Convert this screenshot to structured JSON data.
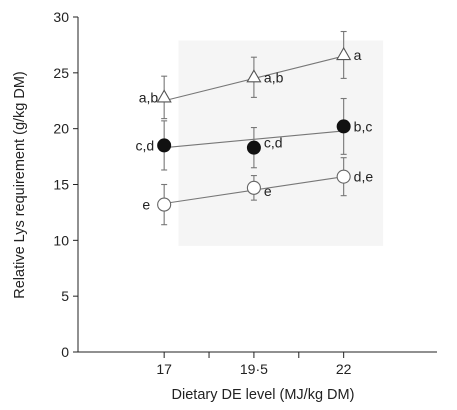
{
  "chart_data": {
    "type": "scatter",
    "xlabel": "Dietary DE level (MJ/kg DM)",
    "ylabel": "Relative Lys requirement (g/kg DM)",
    "x": [
      17,
      19.5,
      22
    ],
    "x_tick_labels": [
      "17",
      "19·5",
      "22"
    ],
    "xlim": [
      14.6,
      24.6
    ],
    "y_ticks": [
      0,
      5,
      10,
      15,
      20,
      25,
      30
    ],
    "ylim": [
      0,
      30
    ],
    "grid": false,
    "legend": "none",
    "shaded_region": {
      "x": [
        17.4,
        23.1
      ],
      "y": [
        9.5,
        27.9
      ],
      "color": "#f5f5f5"
    },
    "series": [
      {
        "marker": "open-triangle",
        "color": "#666666",
        "values": [
          22.8,
          24.6,
          26.6
        ],
        "error": [
          1.9,
          1.8,
          2.1
        ],
        "fit_line": [
          22.5,
          26.5
        ],
        "point_labels": [
          "a,b",
          "a,b",
          "a"
        ]
      },
      {
        "marker": "filled-circle",
        "color": "#111111",
        "values": [
          18.5,
          18.3,
          20.2
        ],
        "error": [
          2.2,
          1.8,
          2.5
        ],
        "fit_line": [
          18.3,
          19.8
        ],
        "point_labels": [
          "c,d",
          "c,d",
          "b,c"
        ]
      },
      {
        "marker": "open-circle",
        "color": "#666666",
        "values": [
          13.2,
          14.7,
          15.7
        ],
        "error": [
          1.8,
          1.1,
          1.7
        ],
        "fit_line": [
          13.3,
          15.7
        ],
        "point_labels": [
          "e",
          "e",
          "d,e"
        ]
      }
    ]
  }
}
